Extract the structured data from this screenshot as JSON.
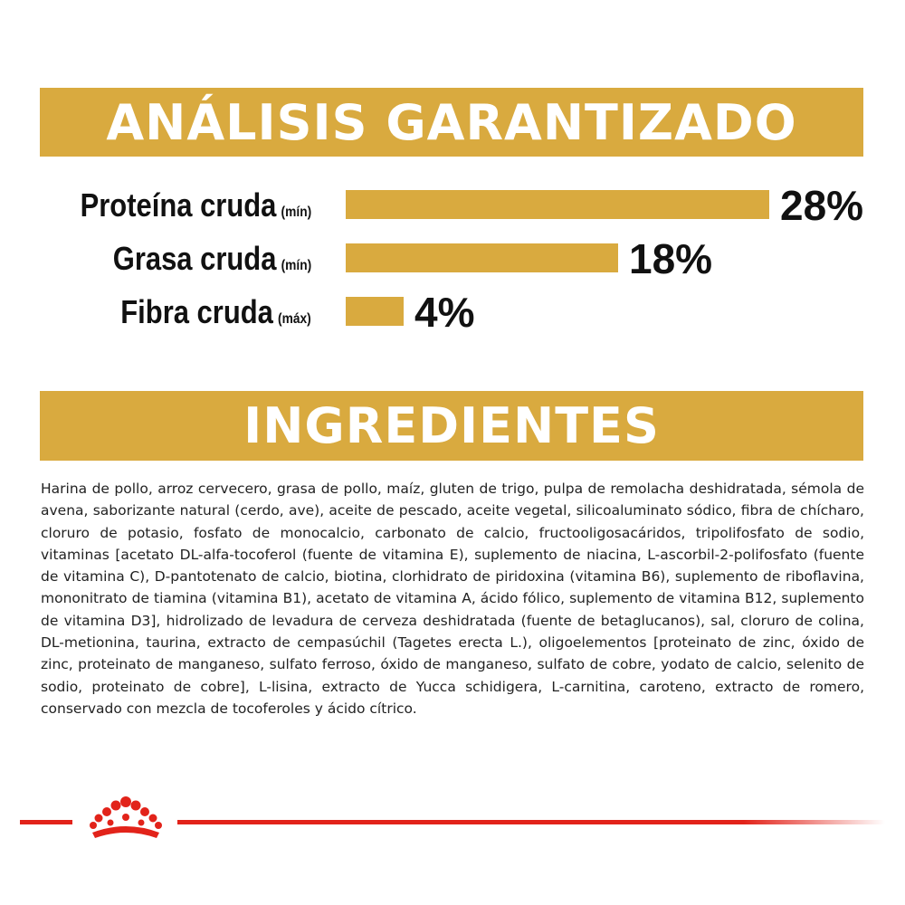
{
  "analysis": {
    "title": "ANÁLISIS GARANTIZADO",
    "bar_color": "#d9aa3f",
    "rows": [
      {
        "label": "Proteína cruda",
        "qualifier": "(mín)",
        "value": "28%",
        "percent": 28
      },
      {
        "label": "Grasa cruda",
        "qualifier": "(mín)",
        "value": "18%",
        "percent": 18
      },
      {
        "label": "Fibra cruda",
        "qualifier": "(máx)",
        "value": "4%",
        "percent": 4
      }
    ]
  },
  "ingredients": {
    "title": "INGREDIENTES",
    "text": "Harina de pollo, arroz cervecero, grasa de pollo, maíz, gluten de trigo, pulpa de remolacha deshidratada, sémola de avena, saborizante natural (cerdo, ave), aceite de pescado, aceite vegetal, silicoaluminato sódico, fibra de chícharo, cloruro de potasio, fosfato de monocalcio, carbonato de calcio, fructooligosacáridos, tripolifosfato de sodio, vitaminas [acetato DL-alfa-tocoferol (fuente de vitamina E), suplemento de niacina, L-ascorbil-2-polifosfato (fuente de vitamina C), D-pantotenato de calcio, biotina, clorhidrato de piridoxina (vitamina B6), suplemento de riboflavina, mononitrato de tiamina (vitamina B1), acetato de vitamina A, ácido fólico, suplemento de vitamina B12, suplemento de vitamina D3], hidrolizado de levadura de cerveza deshidratada (fuente de betaglucanos), sal, cloruro de colina, DL-metionina, taurina, extracto de cempasúchil (Tagetes erecta L.), oligoelementos [proteinato de zinc, óxido de zinc, proteinato de manganeso, sulfato ferroso, óxido de manganeso, sulfato de cobre, yodato de calcio, selenito de sodio, proteinato de cobre], L-lisina, extracto de Yucca schidigera, L-carnitina, caroteno, extracto de romero, conservado con mezcla de tocoferoles y ácido cítrico."
  },
  "footer": {
    "accent_color": "#e2231a",
    "logo_icon": "crown-icon"
  }
}
